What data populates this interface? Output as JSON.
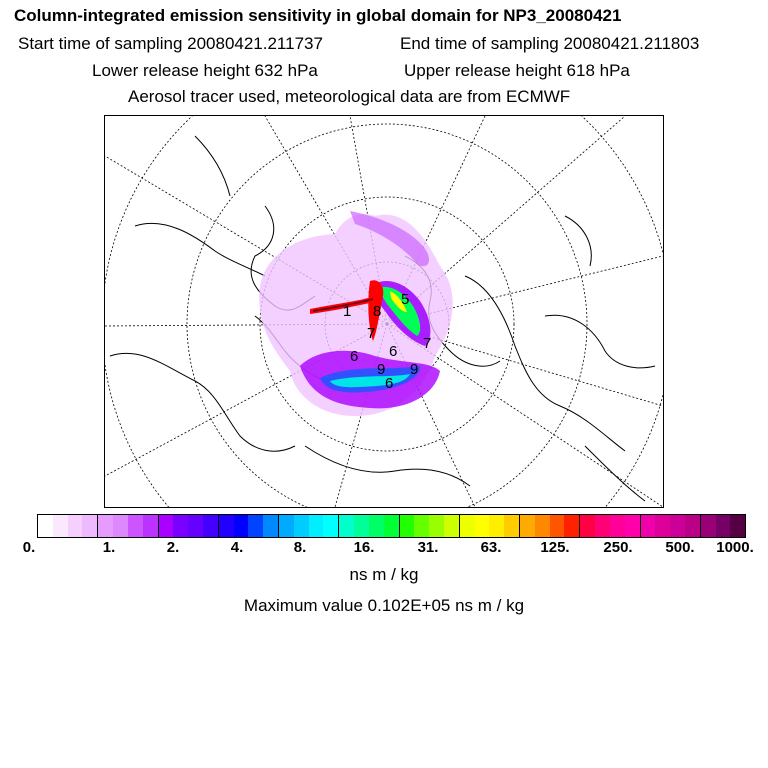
{
  "header": {
    "title": "Column-integrated emission sensitivity in global domain for NP3_20080421",
    "start_label": "Start time of sampling 20080421.211737",
    "end_label": "End time of sampling 20080421.211803",
    "lower_label": "Lower release height  632 hPa",
    "upper_label": "Upper release height  618 hPa",
    "tracer_label": "Aerosol tracer used, meteorological data are from ECMWF"
  },
  "map": {
    "contour_labels": [
      "1",
      "5",
      "9",
      "6",
      "6",
      "6",
      "8",
      "7",
      "7",
      "9"
    ],
    "colors": {
      "low": "#e8b0ff",
      "mid": "#9b00ff",
      "cyan": "#00e5e5",
      "green": "#00ff55",
      "yellow": "#ffff00",
      "red": "#ff0000",
      "dark": "#6a0020"
    }
  },
  "colorbar": {
    "colors": [
      "#ffffff",
      "#fbe8ff",
      "#f5d0ff",
      "#eebaff",
      "#e69cff",
      "#dd88ff",
      "#cc55ff",
      "#bb33ff",
      "#aa00ff",
      "#7a00ff",
      "#6600ff",
      "#4400ff",
      "#2200ff",
      "#0000ff",
      "#0044ff",
      "#0088ff",
      "#00aaff",
      "#00ccff",
      "#00eeff",
      "#00ffff",
      "#00ffcc",
      "#00ff99",
      "#00ff66",
      "#00ff33",
      "#22ff00",
      "#66ff00",
      "#99ff00",
      "#ccff00",
      "#eeff00",
      "#ffff00",
      "#ffee00",
      "#ffcc00",
      "#ffaa00",
      "#ff8800",
      "#ff5500",
      "#ff2200",
      "#ff0044",
      "#ff0077",
      "#ff0099",
      "#ff00aa",
      "#ee00aa",
      "#dd0099",
      "#cc0099",
      "#bb0088",
      "#990077",
      "#770066",
      "#550044"
    ],
    "ticks": [
      "0.",
      "1.",
      "2.",
      "4.",
      "8.",
      "16.",
      "31.",
      "63.",
      "125.",
      "250.",
      "500.",
      "1000."
    ],
    "unit": "ns m / kg"
  },
  "footer": {
    "max_value": "Maximum value  0.102E+05 ns m / kg"
  }
}
